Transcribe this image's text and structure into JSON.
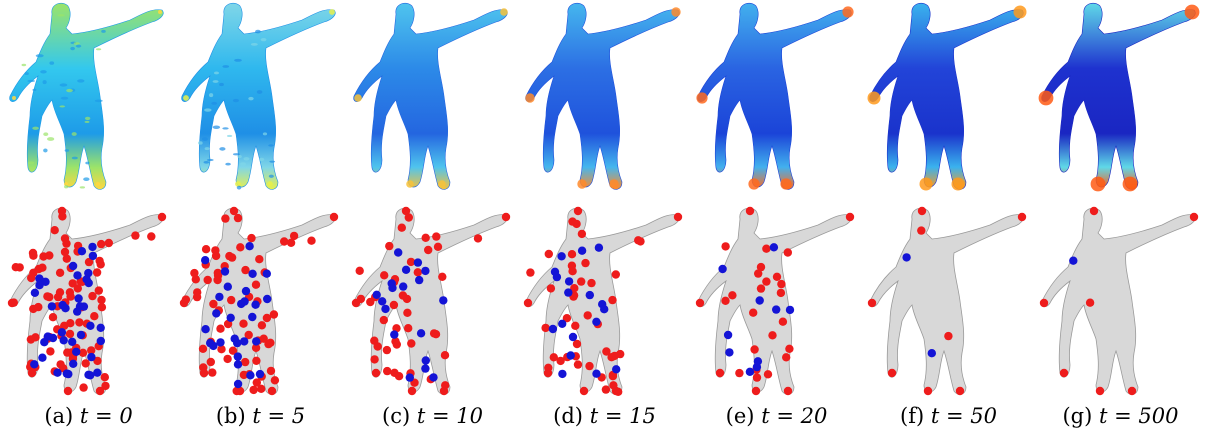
{
  "panels": [
    {
      "label": "(a)",
      "t": "0",
      "mapColors": {
        "body": "#33c8ee",
        "accent": "#9be46a",
        "hot": "#ffd840",
        "low": "#1e9be8"
      },
      "keypoints": "dense"
    },
    {
      "label": "(b)",
      "t": "5",
      "mapColors": {
        "body": "#2fb8ee",
        "accent": "#7fd6e8",
        "hot": "#e8f04a",
        "low": "#1f8fe6"
      },
      "keypoints": "many"
    },
    {
      "label": "(c)",
      "t": "10",
      "mapColors": {
        "body": "#2c8ae8",
        "accent": "#4fc4ee",
        "hot": "#f7c23a",
        "low": "#2466e0"
      },
      "keypoints": "moderate"
    },
    {
      "label": "(d)",
      "t": "15",
      "mapColors": {
        "body": "#2c6fe4",
        "accent": "#45b6ee",
        "hot": "#ff8a2a",
        "low": "#1f52dc"
      },
      "keypoints": "moderate"
    },
    {
      "label": "(e)",
      "t": "20",
      "mapColors": {
        "body": "#2a64e2",
        "accent": "#42b0ee",
        "hot": "#ff6a1e",
        "low": "#1b44d8"
      },
      "keypoints": "few"
    },
    {
      "label": "(f)",
      "t": "50",
      "mapColors": {
        "body": "#2244d8",
        "accent": "#3ab2ee",
        "hot": "#ff9a1c",
        "low": "#1a33cc"
      },
      "keypoints": "sparse"
    },
    {
      "label": "(g)",
      "t": "500",
      "mapColors": {
        "body": "#1e32cf",
        "accent": "#5fd8e8",
        "hot": "#ff5a14",
        "low": "#1a26c2"
      },
      "keypoints": "minimal"
    }
  ],
  "captionSeparator": " = ",
  "captionVar": "t",
  "keypointColors": {
    "red": "#ee1c1c",
    "blue": "#1414d6"
  },
  "meshColor": "#d8d8d8"
}
